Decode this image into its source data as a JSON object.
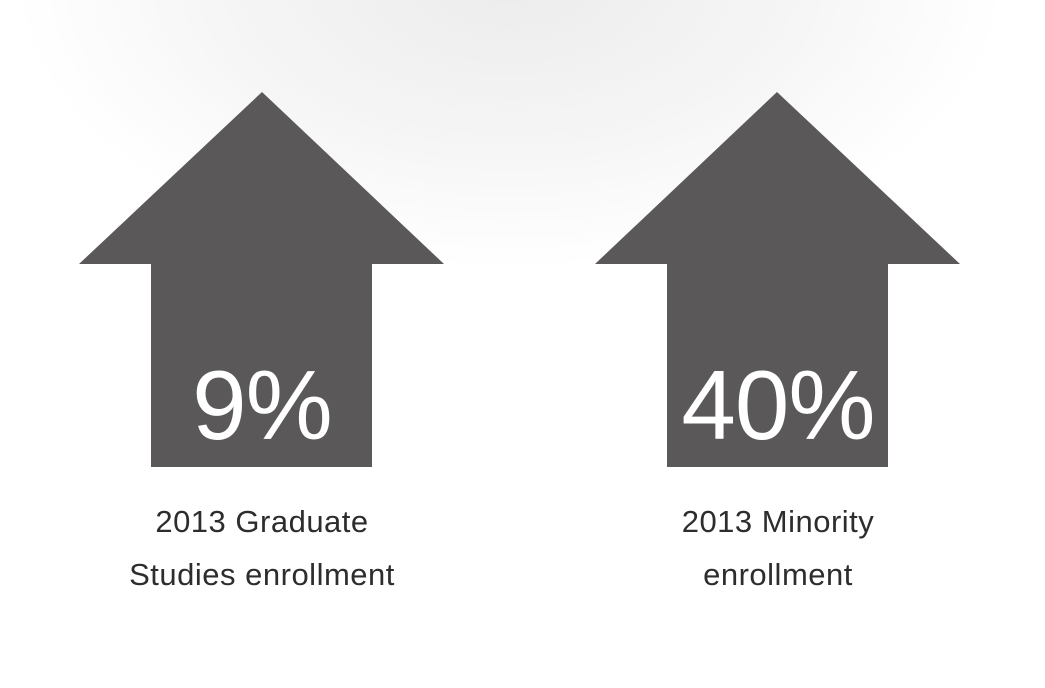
{
  "colors": {
    "arrow": "#5a5859",
    "value_text": "#ffffff",
    "label_text": "#2d2d2d"
  },
  "stats": [
    {
      "icon": "up-arrow-icon",
      "value": "9%",
      "label_lines": [
        "2013 Graduate",
        "Studies enrollment"
      ]
    },
    {
      "icon": "up-arrow-icon",
      "value": "40%",
      "label_lines": [
        "2013 Minority",
        "enrollment"
      ]
    }
  ]
}
